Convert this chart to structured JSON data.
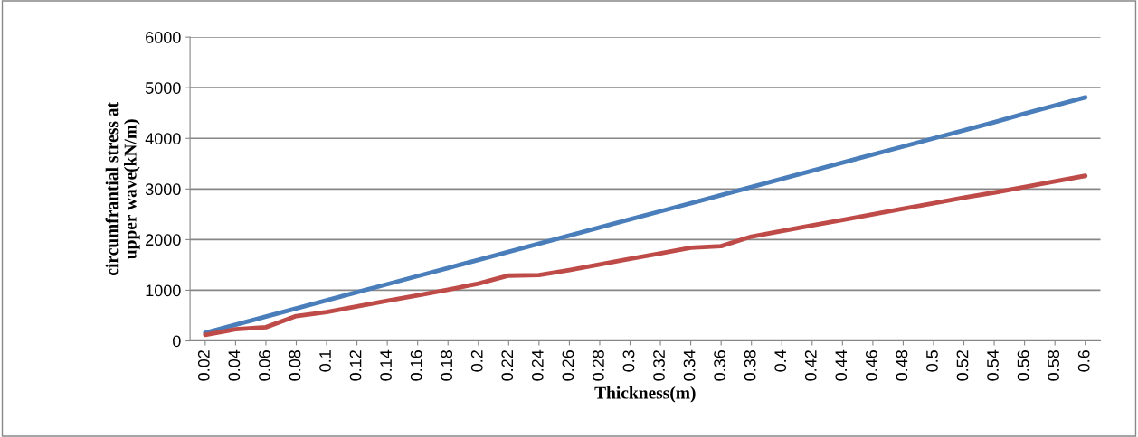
{
  "chart_data": {
    "type": "line",
    "xlabel": "Thickness(m)",
    "ylabel": "circumfrantial stress at\nupper wave(kN/m)",
    "categories": [
      "0.02",
      "0.04",
      "0.06",
      "0.08",
      "0.1",
      "0.12",
      "0.14",
      "0.16",
      "0.18",
      "0.2",
      "0.22",
      "0.24",
      "0.26",
      "0.28",
      "0.3",
      "0.32",
      "0.34",
      "0.36",
      "0.38",
      "0.4",
      "0.42",
      "0.44",
      "0.46",
      "0.48",
      "0.5",
      "0.52",
      "0.54",
      "0.56",
      "0.58",
      "0.6"
    ],
    "series": [
      {
        "color": "#4a7ebb",
        "values": [
          160,
          320,
          480,
          640,
          800,
          960,
          1120,
          1280,
          1440,
          1600,
          1760,
          1920,
          2080,
          2240,
          2400,
          2560,
          2720,
          2880,
          3040,
          3200,
          3360,
          3520,
          3680,
          3840,
          4000,
          4160,
          4320,
          4490,
          4650,
          4810
        ]
      },
      {
        "color": "#be4b48",
        "values": [
          120,
          230,
          270,
          490,
          570,
          680,
          790,
          900,
          1010,
          1130,
          1290,
          1300,
          1400,
          1510,
          1620,
          1730,
          1840,
          1870,
          2060,
          2170,
          2280,
          2390,
          2500,
          2610,
          2720,
          2830,
          2930,
          3040,
          3150,
          3260
        ]
      }
    ],
    "ylim": [
      0,
      6000
    ],
    "yticks": [
      0,
      1000,
      2000,
      3000,
      4000,
      5000,
      6000
    ],
    "grid": "y",
    "marker": "none",
    "line_style": "solid"
  }
}
